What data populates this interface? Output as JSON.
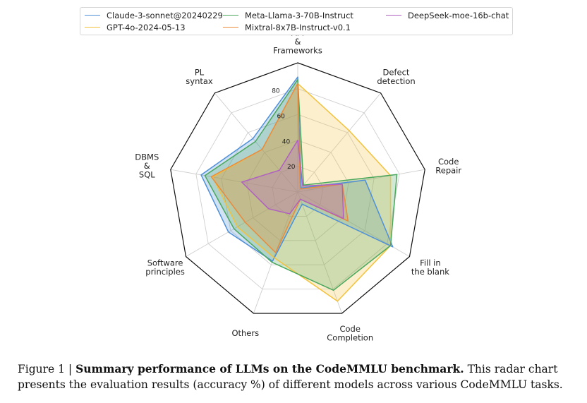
{
  "chart_data": {
    "type": "radar",
    "categories": [
      "API\n&\nFrameworks",
      "Defect\ndetection",
      "Code\nRepair",
      "Fill in\nthe blank",
      "Code\nCompletion",
      "Others",
      "Software\nprinciples",
      "DBMS\n&\nSQL",
      "PL\nsyntax"
    ],
    "rlim": [
      0,
      100
    ],
    "rticks": [
      20,
      40,
      60,
      80
    ],
    "grid": true,
    "legend_position": "top",
    "series": [
      {
        "name": "Claude-3-sonnet@20240229",
        "color": "#4e8fd8",
        "values": [
          89,
          4,
          53,
          85,
          10,
          57,
          62,
          76,
          54
        ]
      },
      {
        "name": "GPT-4o-2024-05-13",
        "color": "#f3c23d",
        "values": [
          84,
          62,
          73,
          83,
          90,
          54,
          54,
          67,
          43
        ]
      },
      {
        "name": "Meta-Llama-3-70B-Instruct",
        "color": "#4aa75c",
        "values": [
          87,
          7,
          78,
          83,
          81,
          58,
          57,
          73,
          51
        ]
      },
      {
        "name": "Mixtral-8x7B-Instruct-v0.1",
        "color": "#e98a3c",
        "values": [
          84,
          3,
          35,
          45,
          6,
          50,
          47,
          68,
          43
        ]
      },
      {
        "name": "DeepSeek-moe-16b-chat",
        "color": "#b060c0",
        "values": [
          40,
          6,
          35,
          41,
          6,
          18,
          26,
          44,
          22
        ]
      }
    ]
  },
  "caption": {
    "figure_label": "Figure 1 | ",
    "title": "Summary performance of LLMs on the CodeMMLU benchmark.",
    "body": " This radar chart presents the evaluation results (accuracy %) of different models across various CodeMMLU tasks."
  }
}
